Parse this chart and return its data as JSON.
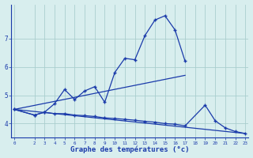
{
  "background_color": "#d8eeee",
  "grid_color": "#aacece",
  "line_color": "#1a3aaa",
  "line1_x": [
    0,
    2,
    3,
    4,
    5,
    6,
    7,
    8,
    9,
    10,
    11,
    12,
    13,
    14,
    15,
    16,
    17
  ],
  "line1_y": [
    4.5,
    4.3,
    4.4,
    4.7,
    5.2,
    4.85,
    5.15,
    5.3,
    4.75,
    5.8,
    6.3,
    6.25,
    7.1,
    7.65,
    7.8,
    7.3,
    6.2
  ],
  "line2_x": [
    0,
    17
  ],
  "line2_y": [
    4.5,
    5.7
  ],
  "line3_x": [
    0,
    2,
    3,
    4,
    5,
    6,
    7,
    8,
    9,
    10,
    11,
    12,
    13,
    14,
    15,
    16,
    17,
    19,
    20,
    21,
    22,
    23
  ],
  "line3_y": [
    4.5,
    4.3,
    4.4,
    4.35,
    4.35,
    4.3,
    4.28,
    4.25,
    4.2,
    4.18,
    4.15,
    4.12,
    4.08,
    4.05,
    4.0,
    3.98,
    3.92,
    4.65,
    4.1,
    3.85,
    3.72,
    3.65
  ],
  "line4_x": [
    0,
    23
  ],
  "line4_y": [
    4.5,
    3.65
  ],
  "ylim": [
    3.5,
    8.2
  ],
  "yticks": [
    4,
    5,
    6,
    7
  ],
  "xticks": [
    0,
    2,
    3,
    4,
    5,
    6,
    7,
    8,
    9,
    10,
    11,
    12,
    13,
    14,
    15,
    16,
    17,
    18,
    19,
    20,
    21,
    22,
    23
  ],
  "xlabel": "Graphe des températures (°c)"
}
